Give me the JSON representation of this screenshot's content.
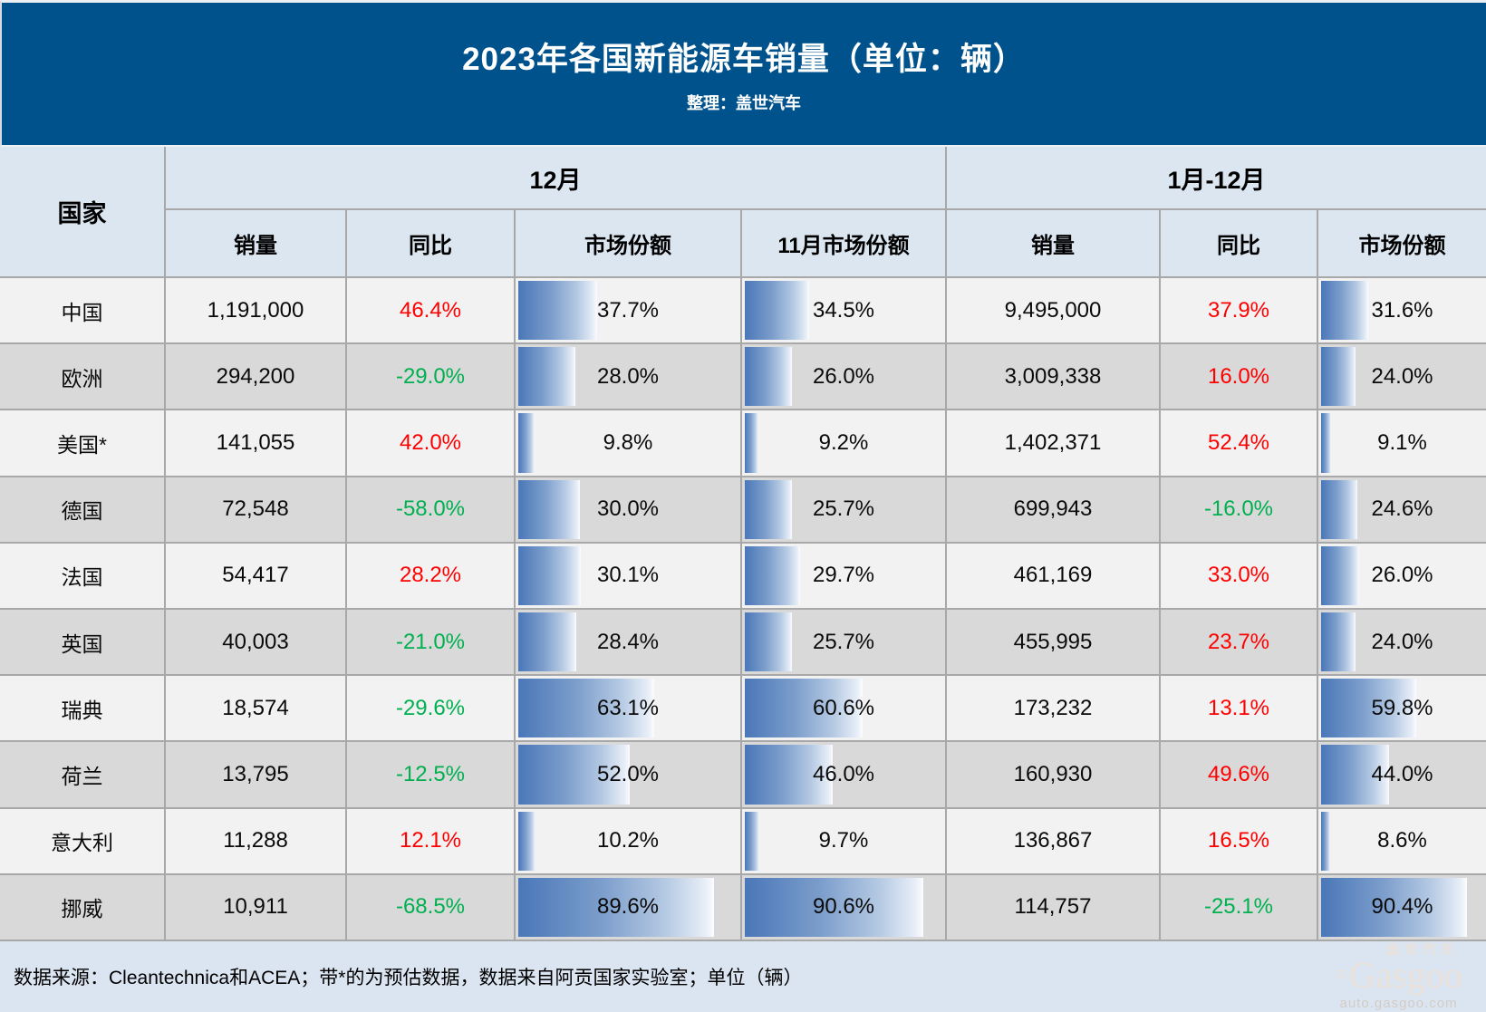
{
  "title": "2023年各国新能源车销量（单位：辆）",
  "subtitle": "整理：盖世汽车",
  "footer_note": "数据来源：Cleantechnica和ACEA；带*的为预估数据，数据来自阿贡国家实验室；单位（辆）",
  "watermark": {
    "cn": "盖世汽车",
    "logo": "Gasgoo",
    "url": "auto.gasgoo.com"
  },
  "colors": {
    "titlebar": "#00528c",
    "header_bg": "#dce6f1",
    "row_light": "#f2f2f2",
    "row_dark": "#d9d9d9",
    "footer_bg": "#dbe5f1",
    "yoy_up": "#ff0000",
    "yoy_down": "#00b050",
    "bar": "#4a77b8"
  },
  "chart_data": {
    "type": "table",
    "title": "2023年各国新能源车销量（单位：辆）",
    "column_groups": [
      {
        "label": "12月",
        "span": 4
      },
      {
        "label": "1月-12月",
        "span": 3
      }
    ],
    "columns": [
      "国家",
      "销量",
      "同比",
      "市场份额",
      "11月市场份额",
      "销量",
      "同比",
      "市场份额"
    ],
    "share_unit": "%",
    "rows": [
      {
        "country": "中国",
        "dec_sales": "1,191,000",
        "dec_yoy": "46.4%",
        "dec_share": 37.7,
        "nov_share": 34.5,
        "ytd_sales": "9,495,000",
        "ytd_yoy": "37.9%",
        "ytd_share": 31.6
      },
      {
        "country": "欧洲",
        "dec_sales": "294,200",
        "dec_yoy": "-29.0%",
        "dec_share": 28.0,
        "nov_share": 26.0,
        "ytd_sales": "3,009,338",
        "ytd_yoy": "16.0%",
        "ytd_share": 24.0
      },
      {
        "country": "美国*",
        "dec_sales": "141,055",
        "dec_yoy": "42.0%",
        "dec_share": 9.8,
        "nov_share": 9.2,
        "ytd_sales": "1,402,371",
        "ytd_yoy": "52.4%",
        "ytd_share": 9.1
      },
      {
        "country": "德国",
        "dec_sales": "72,548",
        "dec_yoy": "-58.0%",
        "dec_share": 30.0,
        "nov_share": 25.7,
        "ytd_sales": "699,943",
        "ytd_yoy": "-16.0%",
        "ytd_share": 24.6
      },
      {
        "country": "法国",
        "dec_sales": "54,417",
        "dec_yoy": "28.2%",
        "dec_share": 30.1,
        "nov_share": 29.7,
        "ytd_sales": "461,169",
        "ytd_yoy": "33.0%",
        "ytd_share": 26.0
      },
      {
        "country": "英国",
        "dec_sales": "40,003",
        "dec_yoy": "-21.0%",
        "dec_share": 28.4,
        "nov_share": 25.7,
        "ytd_sales": "455,995",
        "ytd_yoy": "23.7%",
        "ytd_share": 24.0
      },
      {
        "country": "瑞典",
        "dec_sales": "18,574",
        "dec_yoy": "-29.6%",
        "dec_share": 63.1,
        "nov_share": 60.6,
        "ytd_sales": "173,232",
        "ytd_yoy": "13.1%",
        "ytd_share": 59.8
      },
      {
        "country": "荷兰",
        "dec_sales": "13,795",
        "dec_yoy": "-12.5%",
        "dec_share": 52.0,
        "nov_share": 46.0,
        "ytd_sales": "160,930",
        "ytd_yoy": "49.6%",
        "ytd_share": 44.0
      },
      {
        "country": "意大利",
        "dec_sales": "11,288",
        "dec_yoy": "12.1%",
        "dec_share": 10.2,
        "nov_share": 9.7,
        "ytd_sales": "136,867",
        "ytd_yoy": "16.5%",
        "ytd_share": 8.6
      },
      {
        "country": "挪威",
        "dec_sales": "10,911",
        "dec_yoy": "-68.5%",
        "dec_share": 89.6,
        "nov_share": 90.6,
        "ytd_sales": "114,757",
        "ytd_yoy": "-25.1%",
        "ytd_share": 90.4
      }
    ]
  }
}
